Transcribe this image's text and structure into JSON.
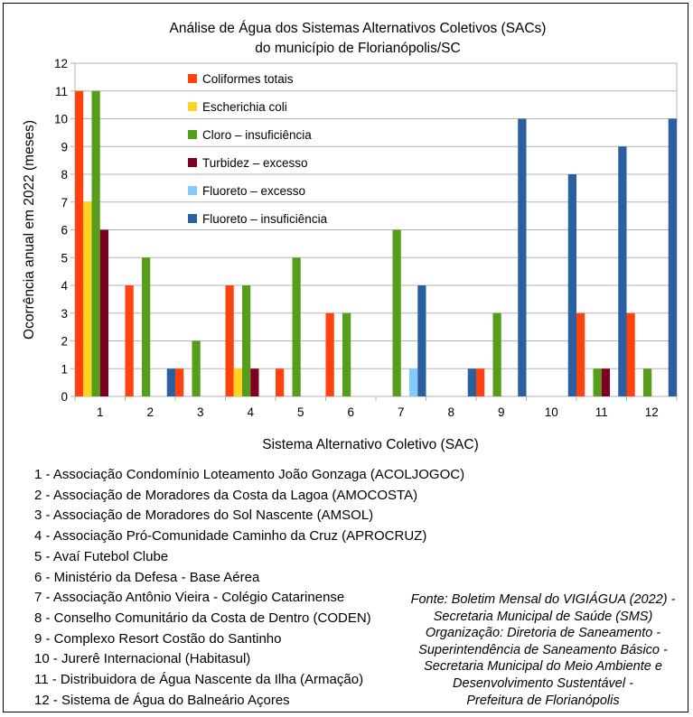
{
  "chart_data": {
    "type": "bar",
    "title_lines": [
      "Análise de Água dos Sistemas Alternativos Coletivos (SACs)",
      "do município de Florianópolis/SC"
    ],
    "xlabel": "Sistema Alternativo Coletivo (SAC)",
    "ylabel": "Ocorrência anual em 2022 (meses)",
    "ylim": [
      0,
      12
    ],
    "yticks": [
      "0",
      "1",
      "2",
      "3",
      "4",
      "5",
      "6",
      "7",
      "8",
      "9",
      "10",
      "11",
      "12"
    ],
    "grid": true,
    "legend_position": "top-left inside plot",
    "categories": [
      "1",
      "2",
      "3",
      "4",
      "5",
      "6",
      "7",
      "8",
      "9",
      "10",
      "11",
      "12"
    ],
    "series": [
      {
        "name": "Coliformes totais",
        "color": "#ff420e",
        "values": [
          11,
          4,
          1,
          4,
          1,
          3,
          0,
          0,
          1,
          0,
          3,
          3
        ]
      },
      {
        "name": "Escherichia coli",
        "color": "#ffd320",
        "values": [
          7,
          0,
          0,
          1,
          0,
          0,
          0,
          0,
          0,
          0,
          0,
          0
        ]
      },
      {
        "name": "Cloro – insuficiência",
        "color": "#579d1c",
        "values": [
          11,
          5,
          2,
          4,
          5,
          3,
          6,
          0,
          3,
          0,
          1,
          1
        ]
      },
      {
        "name": "Turbidez – excesso",
        "color": "#7e0021",
        "values": [
          6,
          0,
          0,
          1,
          0,
          0,
          0,
          0,
          0,
          0,
          1,
          0
        ]
      },
      {
        "name": "Fluoreto – excesso",
        "color": "#83caff",
        "values": [
          0,
          0,
          0,
          0,
          0,
          0,
          1,
          0,
          0,
          0,
          0,
          0
        ]
      },
      {
        "name": "Fluoreto – insuficiência",
        "color": "#2a5fa0",
        "values": [
          0,
          1,
          0,
          0,
          0,
          0,
          4,
          1,
          10,
          8,
          9,
          10
        ]
      }
    ]
  },
  "sac_list": [
    "1 - Associação Condomínio Loteamento João Gonzaga (ACOLJOGOC)",
    "2 - Associação de Moradores da Costa da Lagoa (AMOCOSTA)",
    "3 - Associação de Moradores do Sol Nascente (AMSOL)",
    "4 - Associação Pró-Comunidade Caminho da Cruz (APROCRUZ)",
    "5 - Avaí Futebol Clube",
    "6 - Ministério da Defesa - Base Aérea",
    "7 - Associação Antônio Vieira - Colégio Catarinense",
    "8 - Conselho Comunitário da Costa de Dentro (CODEN)",
    "9 - Complexo Resort Costão do Santinho",
    "10 - Jurerê Internacional (Habitasul)",
    "11 - Distribuidora de Água Nascente da Ilha (Armação)",
    "12 - Sistema de Água do Balneário Açores"
  ],
  "source_note": [
    "Fonte: Boletim Mensal do VIGIÁGUA (2022) -",
    "Secretaria Municipal de Saúde (SMS)",
    "Organização: Diretoria de Saneamento -",
    "Superintendência de Saneamento Básico -",
    "Secretaria Municipal do Meio Ambiente e",
    "Desenvolvimento Sustentável -",
    "Prefeitura de Florianópolis"
  ]
}
